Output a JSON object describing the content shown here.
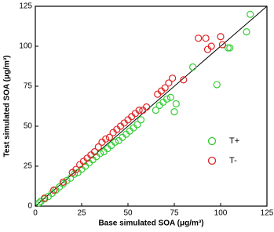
{
  "chart_data": {
    "type": "scatter",
    "x_label": "Base simulated SOA (μg/m³)",
    "y_label": "Test simulated SOA (μg/m³)",
    "xlim": [
      0,
      125
    ],
    "ylim": [
      0,
      125
    ],
    "xticks": [
      0,
      25,
      50,
      75,
      100,
      125
    ],
    "yticks": [
      0,
      25,
      50,
      75,
      100,
      125
    ],
    "legend_position": "lower right",
    "series": [
      {
        "name": "T+",
        "color": "#33cc33",
        "x": [
          2,
          3,
          5,
          7,
          9,
          11,
          13,
          15,
          17,
          19,
          21,
          23,
          25,
          27,
          29,
          31,
          33,
          35,
          37,
          39,
          41,
          43,
          45,
          47,
          49,
          51,
          53,
          55,
          57,
          65,
          67,
          69,
          71,
          73,
          75,
          76,
          85,
          98,
          104,
          105,
          114,
          116
        ],
        "values": [
          2,
          3,
          4.5,
          6,
          8,
          10,
          12,
          14,
          16,
          17.5,
          20,
          21,
          23,
          25,
          27,
          29,
          31,
          33,
          34,
          36,
          38,
          40,
          41,
          43,
          45,
          47,
          49,
          51,
          54,
          60,
          63,
          65,
          67,
          68,
          59,
          64,
          87,
          76,
          99,
          99,
          109,
          120
        ]
      },
      {
        "name": "T-",
        "color": "#dd2222",
        "x": [
          5,
          10,
          15,
          20,
          22,
          24,
          26,
          28,
          30,
          32,
          34,
          36,
          38,
          40,
          42,
          44,
          46,
          48,
          50,
          52,
          54,
          56,
          58,
          60,
          66,
          68,
          70,
          72,
          74,
          80,
          88,
          92,
          93,
          95,
          100,
          101
        ],
        "values": [
          5,
          10,
          15,
          21,
          23,
          26,
          28,
          30,
          32,
          34,
          37,
          40,
          42,
          43,
          46,
          48,
          50,
          52,
          54,
          56,
          58,
          60,
          60,
          62,
          70,
          72,
          74,
          77,
          80,
          79,
          105,
          105,
          98,
          100,
          106,
          101
        ]
      }
    ]
  }
}
